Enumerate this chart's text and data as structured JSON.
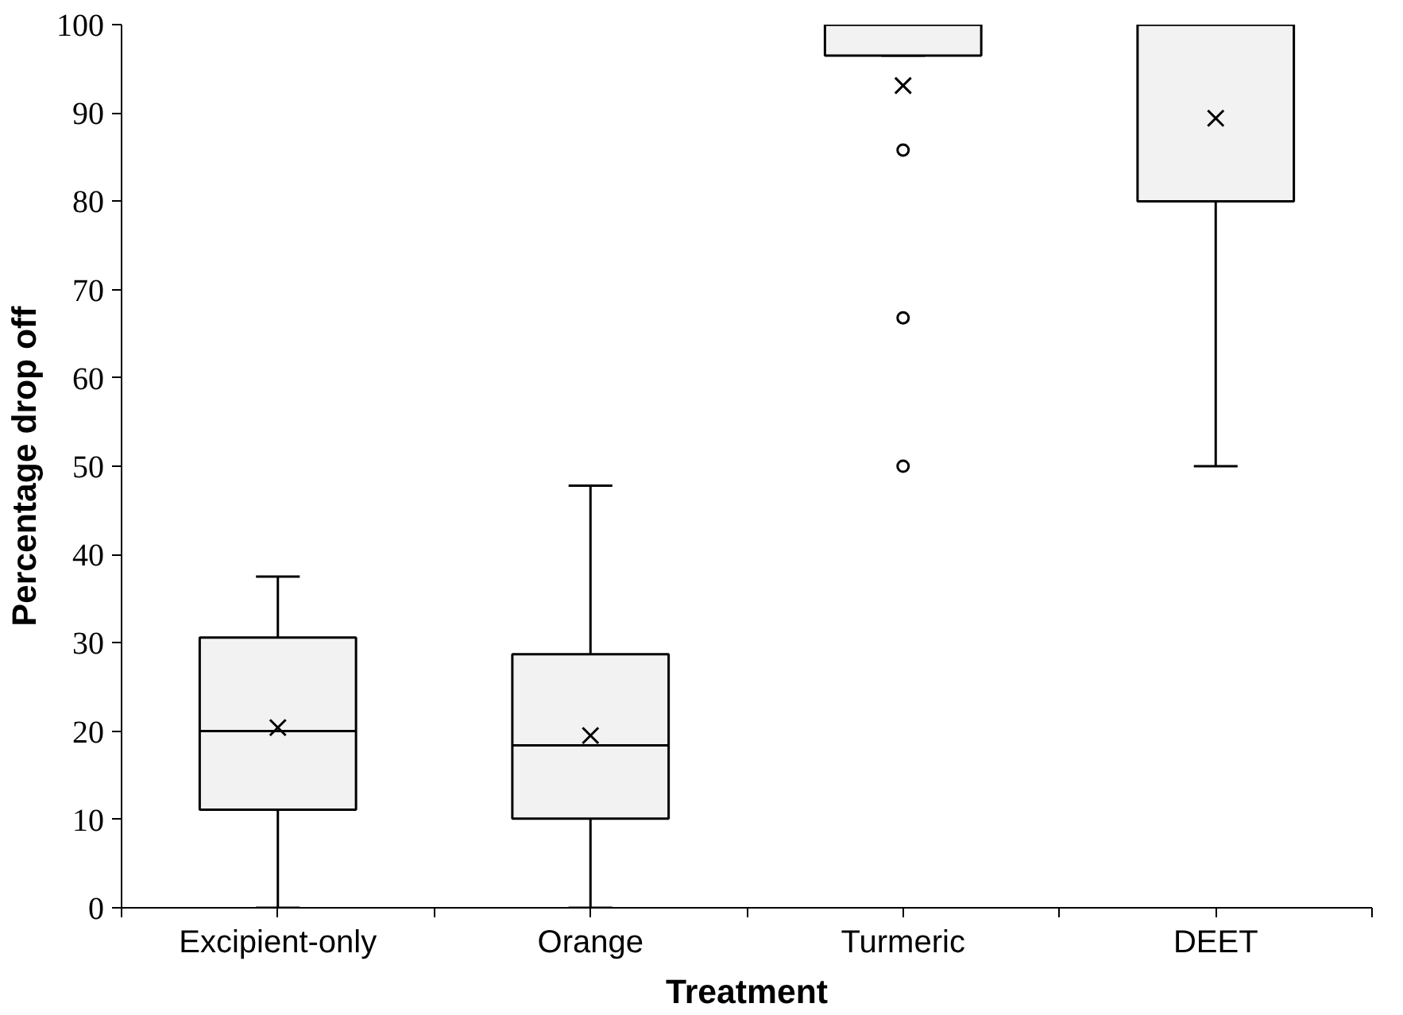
{
  "chart_data": {
    "type": "box",
    "xlabel": "Treatment",
    "ylabel": "Percentage drop off",
    "categories": [
      "Excipient-only",
      "Orange",
      "Turmeric",
      "DEET"
    ],
    "color": "#f2f2f2",
    "boxes": [
      {
        "low": 0,
        "q1": 11.1,
        "median": 20.0,
        "q3": 30.6,
        "high": 37.5,
        "mean": 20.4
      },
      {
        "low": 0,
        "q1": 10.1,
        "median": 18.4,
        "q3": 28.7,
        "high": 47.8,
        "mean": 19.5
      },
      {
        "low": 96.5,
        "q1": 96.5,
        "median": 100,
        "q3": 100,
        "high": 100,
        "mean": 93.1,
        "outliers": [
          85.8,
          66.8,
          50.0
        ]
      },
      {
        "low": 50,
        "q1": 80,
        "median": 100,
        "q3": 100,
        "high": 100,
        "mean": 89.4
      }
    ],
    "ylim": [
      0,
      100
    ],
    "yticks": [
      0,
      10,
      20,
      30,
      40,
      50,
      60,
      70,
      80,
      90,
      100
    ],
    "grid": false
  }
}
